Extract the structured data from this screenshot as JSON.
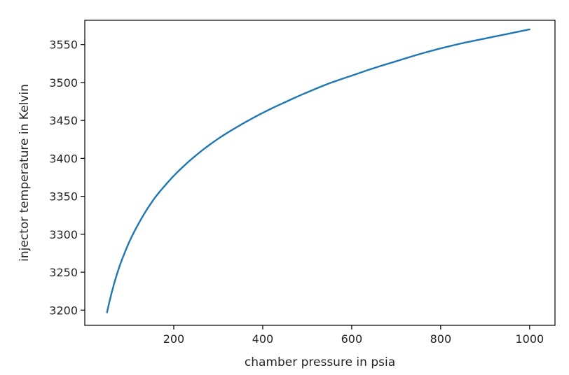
{
  "chart_data": {
    "type": "line",
    "title": "",
    "xlabel": "chamber pressure in psia",
    "ylabel": "injector temperature in Kelvin",
    "xlim": [
      0,
      1057
    ],
    "ylim": [
      3180,
      3582
    ],
    "xticks": [
      200,
      400,
      600,
      800,
      1000
    ],
    "yticks": [
      3200,
      3250,
      3300,
      3350,
      3400,
      3450,
      3500,
      3550
    ],
    "grid": false,
    "line_color": "#1f77b4",
    "series": [
      {
        "x": [
          50,
          60,
          70,
          80,
          90,
          100,
          120,
          140,
          160,
          180,
          200,
          250,
          300,
          350,
          400,
          450,
          500,
          550,
          600,
          650,
          700,
          750,
          800,
          850,
          900,
          950,
          1000
        ],
        "y": [
          3197,
          3222,
          3243,
          3261,
          3276,
          3290,
          3313,
          3333,
          3350,
          3364,
          3377,
          3404,
          3426,
          3444,
          3460,
          3474,
          3487,
          3499,
          3509,
          3519,
          3528,
          3537,
          3545,
          3552,
          3558,
          3564,
          3570
        ]
      }
    ]
  }
}
